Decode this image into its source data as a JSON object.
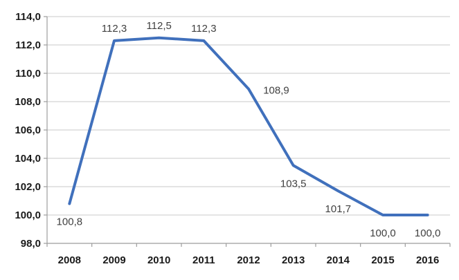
{
  "chart_data": {
    "type": "line",
    "title": "",
    "xlabel": "",
    "ylabel": "",
    "categories": [
      "2008",
      "2009",
      "2010",
      "2011",
      "2012",
      "2013",
      "2014",
      "2015",
      "2016"
    ],
    "values": [
      100.8,
      112.3,
      112.5,
      112.3,
      108.9,
      103.5,
      101.7,
      100.0,
      100.0
    ],
    "data_labels": [
      "100,8",
      "112,3",
      "112,5",
      "112,3",
      "108,9",
      "103,5",
      "101,7",
      "100,0",
      "100,0"
    ],
    "label_placements": [
      "below",
      "above",
      "above",
      "above",
      "right",
      "below",
      "below",
      "below",
      "below"
    ],
    "y_ticks": [
      114,
      112,
      110,
      108,
      106,
      104,
      102,
      100,
      98
    ],
    "y_tick_labels": [
      "114,0",
      "112,0",
      "110,0",
      "108,0",
      "106,0",
      "104,0",
      "102,0",
      "100,0",
      "98,0"
    ],
    "ylim": [
      98,
      114
    ],
    "grid": true,
    "legend": false
  },
  "colors": {
    "line": "#4070BC",
    "gridline": "#C9C9C9",
    "axis": "#9C9C9C",
    "axis_text": "#1A1A1A",
    "data_label_text": "#404040",
    "background": "#FFFFFF"
  }
}
